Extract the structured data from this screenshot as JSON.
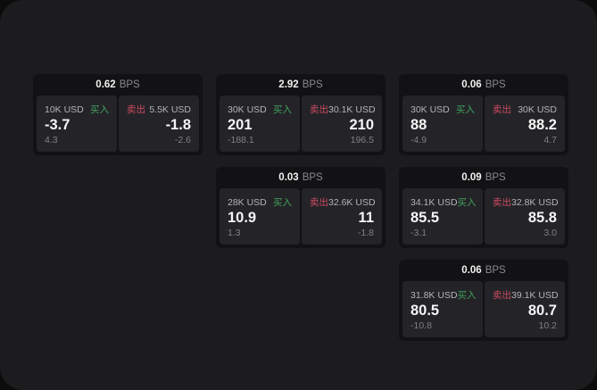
{
  "colors": {
    "outer_bg": "#0c0c0c",
    "panel_bg": "#1c1c1e",
    "card_bg": "#121214",
    "tile_bg": "#242428",
    "buy_green": "#3fa15c",
    "sell_red": "#cc4a60",
    "value_white": "#f5f5f5",
    "muted_gray": "#808084"
  },
  "labels": {
    "bps": "BPS",
    "buy": "买入",
    "sell": "卖出"
  },
  "cards": [
    {
      "row": 1,
      "col": 1,
      "bps": "0.62",
      "buy": {
        "amount": "10K USD",
        "value": "-3.7",
        "delta": "4.3"
      },
      "sell": {
        "amount": "5.5K USD",
        "value": "-1.8",
        "delta": "-2.6"
      }
    },
    {
      "row": 1,
      "col": 2,
      "bps": "2.92",
      "buy": {
        "amount": "30K USD",
        "value": "201",
        "delta": "-188.1"
      },
      "sell": {
        "amount": "30.1K USD",
        "value": "210",
        "delta": "196.5"
      }
    },
    {
      "row": 1,
      "col": 3,
      "bps": "0.06",
      "buy": {
        "amount": "30K USD",
        "value": "88",
        "delta": "-4.9"
      },
      "sell": {
        "amount": "30K USD",
        "value": "88.2",
        "delta": "4.7"
      }
    },
    {
      "row": 2,
      "col": 2,
      "bps": "0.03",
      "buy": {
        "amount": "28K USD",
        "value": "10.9",
        "delta": "1.3"
      },
      "sell": {
        "amount": "32.6K USD",
        "value": "11",
        "delta": "-1.8"
      }
    },
    {
      "row": 2,
      "col": 3,
      "bps": "0.09",
      "buy": {
        "amount": "34.1K USD",
        "value": "85.5",
        "delta": "-3.1"
      },
      "sell": {
        "amount": "32.8K USD",
        "value": "85.8",
        "delta": "3.0"
      }
    },
    {
      "row": 3,
      "col": 3,
      "bps": "0.06",
      "buy": {
        "amount": "31.8K USD",
        "value": "80.5",
        "delta": "-10.8"
      },
      "sell": {
        "amount": "39.1K USD",
        "value": "80.7",
        "delta": "10.2"
      }
    }
  ]
}
